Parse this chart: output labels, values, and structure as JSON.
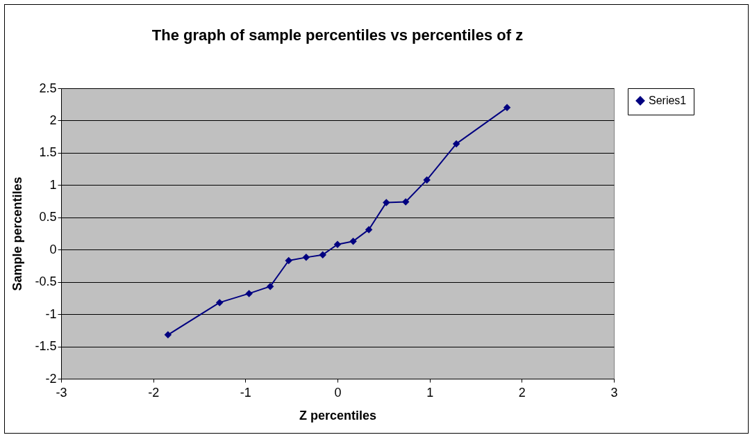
{
  "chart_data": {
    "type": "line",
    "title": "The graph of sample percentiles vs percentiles of z",
    "xlabel": "Z percentiles",
    "ylabel": "Sample percentiles",
    "x": [
      -1.84,
      -1.28,
      -0.96,
      -0.73,
      -0.53,
      -0.34,
      -0.16,
      0,
      0.17,
      0.34,
      0.53,
      0.74,
      0.97,
      1.29,
      1.84
    ],
    "series": [
      {
        "name": "Series1",
        "color": "#000080",
        "values": [
          -1.32,
          -0.82,
          -0.68,
          -0.57,
          -0.17,
          -0.12,
          -0.08,
          0.08,
          0.13,
          0.31,
          0.73,
          0.74,
          1.08,
          1.64,
          2.2
        ]
      }
    ],
    "xlim": [
      -3,
      3
    ],
    "xticks": [
      -3,
      -2,
      -1,
      0,
      1,
      2,
      3
    ],
    "ylim": [
      -2,
      2.5
    ],
    "yticks": [
      -2,
      -1.5,
      -1,
      -0.5,
      0,
      0.5,
      1,
      1.5,
      2,
      2.5
    ],
    "grid": "y",
    "legend": "right",
    "marker": "diamond",
    "line_style": "solid"
  }
}
